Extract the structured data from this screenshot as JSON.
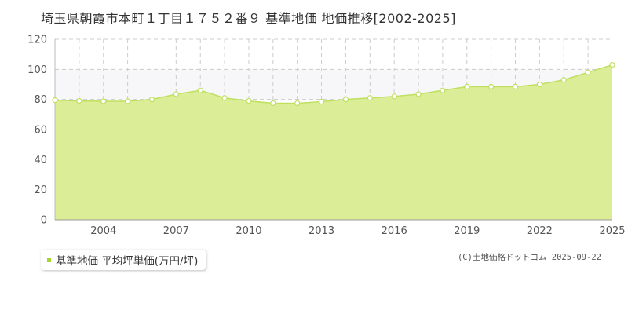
{
  "title": "埼玉県朝霞市本町１丁目１７５２番９ 基準地価 地価推移[2002-2025]",
  "legend": {
    "label": "基準地価 平均坪単価(万円/坪)"
  },
  "copyright": "(C)土地価格ドットコム 2025-09-22",
  "colors": {
    "fill": "#dbed96",
    "line": "#bfe05f",
    "marker": "#a8d432",
    "band": "#f7f7fa"
  },
  "chart_data": {
    "type": "area",
    "x": [
      2002,
      2003,
      2004,
      2005,
      2006,
      2007,
      2008,
      2009,
      2010,
      2011,
      2012,
      2013,
      2014,
      2015,
      2016,
      2017,
      2018,
      2019,
      2020,
      2021,
      2022,
      2023,
      2024,
      2025
    ],
    "series": [
      {
        "values": [
          79.5,
          79,
          78.8,
          78.8,
          80,
          83.5,
          86,
          81,
          79,
          77.5,
          77.5,
          78.5,
          80,
          81,
          82,
          83.5,
          86,
          88.5,
          88.5,
          88.5,
          90,
          93,
          98,
          103
        ]
      }
    ],
    "x_ticks": [
      "2004",
      "2007",
      "2010",
      "2013",
      "2016",
      "2019",
      "2022",
      "2025"
    ],
    "y_ticks": [
      "0",
      "20",
      "40",
      "60",
      "80",
      "100",
      "120"
    ],
    "xlim": [
      2002,
      2025
    ],
    "ylim": [
      0,
      120
    ],
    "grid": true,
    "legend_position": "bottom-left"
  }
}
